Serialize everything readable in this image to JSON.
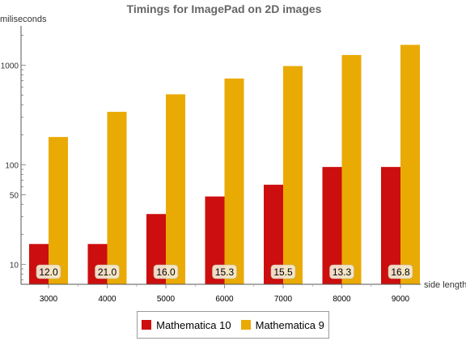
{
  "chart_data": {
    "type": "bar",
    "title": "Timings for ImagePad on 2D images",
    "ylabel": "miliseconds",
    "xlabel": "side length",
    "y_scale": "log",
    "ylim": [
      6.3,
      2300
    ],
    "y_ticks": [
      10,
      50,
      100,
      1000
    ],
    "categories": [
      "3000",
      "4000",
      "5000",
      "6000",
      "7000",
      "8000",
      "9000"
    ],
    "series": [
      {
        "name": "Mathematica 10",
        "color": "#cc0e0e",
        "values": [
          16,
          16,
          32,
          48,
          63,
          95,
          95
        ]
      },
      {
        "name": "Mathematica 9",
        "color": "#eaaa04",
        "values": [
          190,
          340,
          510,
          735,
          980,
          1265,
          1600
        ]
      }
    ],
    "annotations": [
      "12.0",
      "21.0",
      "16.0",
      "15.3",
      "15.5",
      "13.3",
      "16.8"
    ],
    "grid": false,
    "legend": "bottom"
  }
}
